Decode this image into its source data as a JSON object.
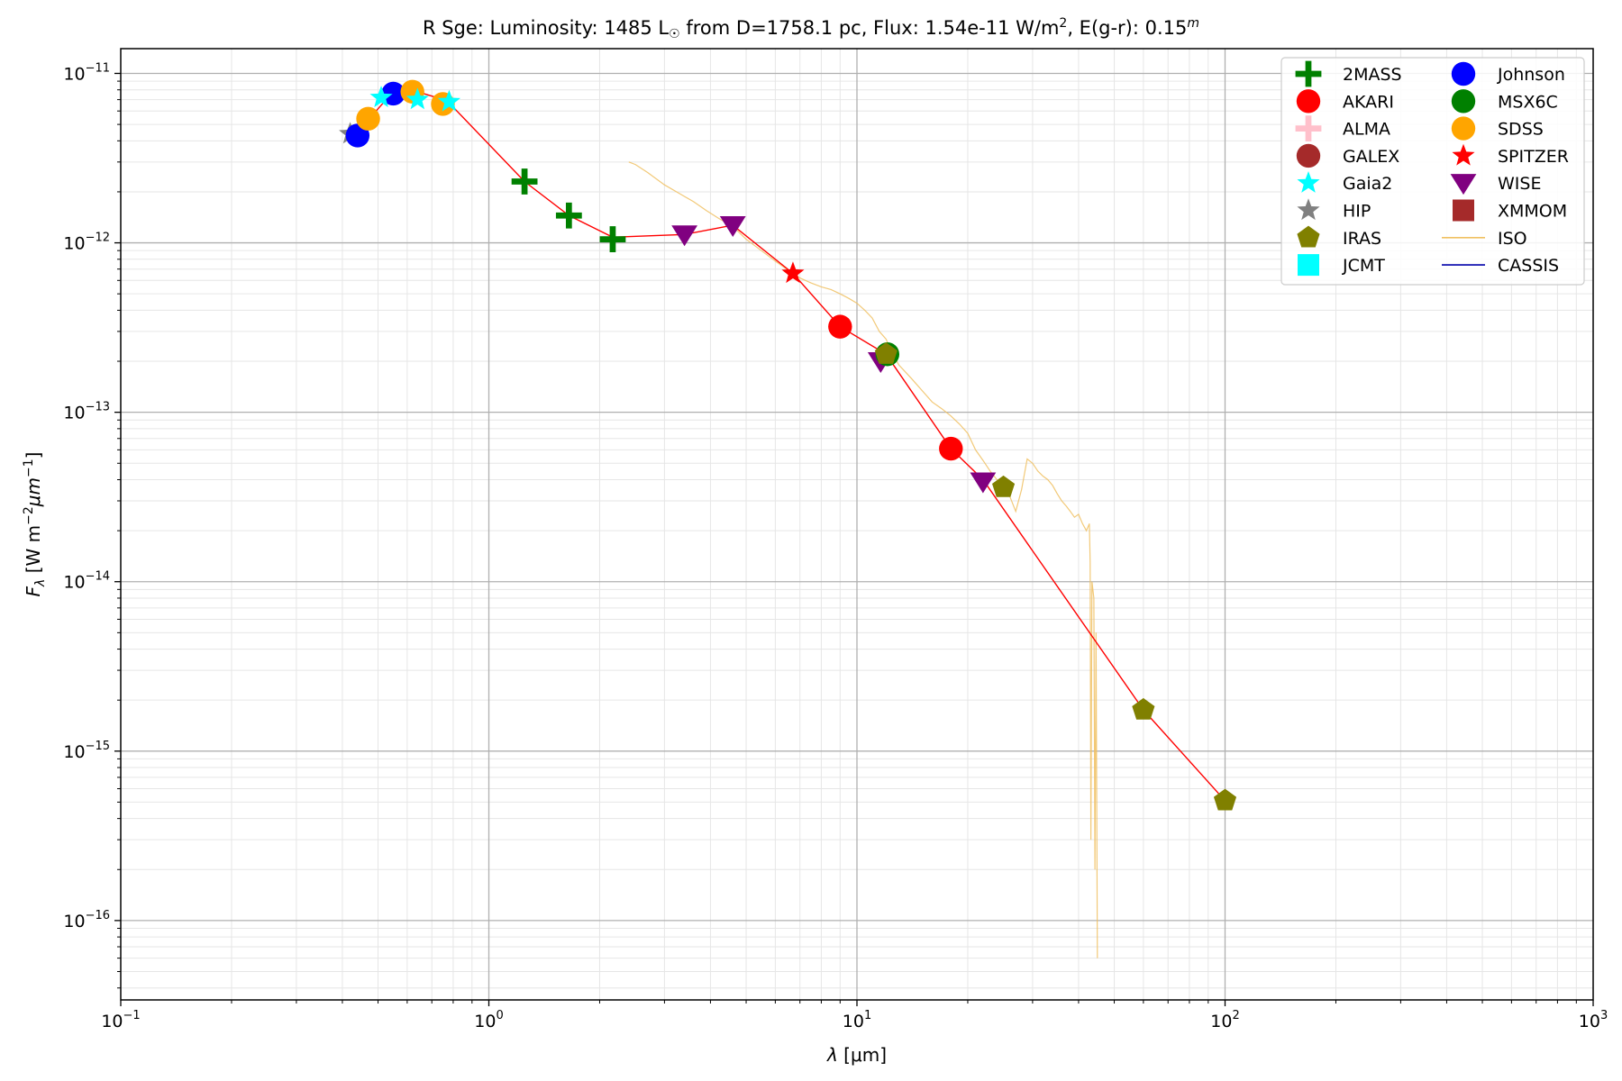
{
  "chart_data": {
    "type": "scatter",
    "title": {
      "prefix": "R Sge:  Luminosity: 1485 L",
      "sun_symbol": "☉",
      "middle": " from D=1758.1 pc, Flux: 1.54e-11 W/m",
      "exp2": "2",
      "suffix": ", E(g-r): 0.15",
      "exp_m": "m"
    },
    "xlabel": {
      "lambda": "λ",
      "unit": " [μm]"
    },
    "ylabel": {
      "F": "F",
      "sub": "λ",
      "pre": " [W m",
      "exp1": "−2",
      "mu": "μm",
      "exp2": "−1",
      "post": "]"
    },
    "xscale": "log",
    "yscale": "log",
    "xlim": [
      0.1,
      1000
    ],
    "ylim": [
      3.4e-17,
      1.4e-11
    ],
    "grid": true,
    "legend_placement": "top-right",
    "x_ticks": [
      {
        "base": "10",
        "exp": "−1",
        "value": 0.1
      },
      {
        "base": "10",
        "exp": "0",
        "value": 1
      },
      {
        "base": "10",
        "exp": "1",
        "value": 10
      },
      {
        "base": "10",
        "exp": "2",
        "value": 100
      },
      {
        "base": "10",
        "exp": "3",
        "value": 1000
      }
    ],
    "y_ticks": [
      {
        "base": "10",
        "exp": "−16",
        "value": 1e-16
      },
      {
        "base": "10",
        "exp": "−15",
        "value": 1e-15
      },
      {
        "base": "10",
        "exp": "−14",
        "value": 1e-14
      },
      {
        "base": "10",
        "exp": "−13",
        "value": 1e-13
      },
      {
        "base": "10",
        "exp": "−12",
        "value": 1e-12
      },
      {
        "base": "10",
        "exp": "−11",
        "value": 1e-11
      }
    ],
    "legend": [
      {
        "name": "2MASS",
        "marker": "plus",
        "color": "#008000"
      },
      {
        "name": "AKARI",
        "marker": "circle",
        "color": "#ff0000"
      },
      {
        "name": "ALMA",
        "marker": "plus",
        "color": "#ffc0cb"
      },
      {
        "name": "GALEX",
        "marker": "circle",
        "color": "#a52a2a"
      },
      {
        "name": "Gaia2",
        "marker": "star",
        "color": "#00ffff"
      },
      {
        "name": "HIP",
        "marker": "star",
        "color": "#808080"
      },
      {
        "name": "IRAS",
        "marker": "pentagon",
        "color": "#808000"
      },
      {
        "name": "JCMT",
        "marker": "square",
        "color": "#00ffff"
      },
      {
        "name": "Johnson",
        "marker": "circle",
        "color": "#0000ff"
      },
      {
        "name": "MSX6C",
        "marker": "circle",
        "color": "#008000"
      },
      {
        "name": "SDSS",
        "marker": "circle",
        "color": "#ffa500"
      },
      {
        "name": "SPITZER",
        "marker": "star",
        "color": "#ff0000"
      },
      {
        "name": "WISE",
        "marker": "triangle-down",
        "color": "#800080"
      },
      {
        "name": "XMMOM",
        "marker": "square",
        "color": "#a52a2a"
      },
      {
        "name": "ISO",
        "marker": "line",
        "color": "#f0c060"
      },
      {
        "name": "CASSIS",
        "marker": "line",
        "color": "#0000aa"
      }
    ],
    "model_line": {
      "color": "#ff0000",
      "points": [
        [
          0.435,
          4.4e-12
        ],
        [
          0.55,
          7.8e-12
        ],
        [
          0.64,
          7.8e-12
        ],
        [
          0.77,
          6.9e-12
        ],
        [
          1.25,
          2.3e-12
        ],
        [
          1.65,
          1.45e-12
        ],
        [
          2.17,
          1.08e-12
        ],
        [
          3.4,
          1.12e-12
        ],
        [
          4.6,
          1.27e-12
        ],
        [
          6.7,
          6.6e-13
        ],
        [
          9.0,
          3.2e-13
        ],
        [
          12.0,
          2.2e-13
        ],
        [
          18.0,
          6.1e-14
        ],
        [
          22.0,
          4e-14
        ],
        [
          60.0,
          1.75e-15
        ],
        [
          100.0,
          5.1e-16
        ]
      ]
    },
    "series": [
      {
        "name": "HIP",
        "points": [
          [
            0.42,
            4.4e-12
          ]
        ]
      },
      {
        "name": "Johnson",
        "points": [
          [
            0.44,
            4.3e-12
          ],
          [
            0.55,
            7.6e-12
          ]
        ]
      },
      {
        "name": "SDSS",
        "points": [
          [
            0.47,
            5.4e-12
          ],
          [
            0.62,
            7.8e-12
          ],
          [
            0.75,
            6.6e-12
          ]
        ]
      },
      {
        "name": "Gaia2",
        "points": [
          [
            0.51,
            7.2e-12
          ],
          [
            0.64,
            7e-12
          ],
          [
            0.78,
            6.8e-12
          ]
        ]
      },
      {
        "name": "2MASS",
        "points": [
          [
            1.25,
            2.3e-12
          ],
          [
            1.65,
            1.45e-12
          ],
          [
            2.17,
            1.05e-12
          ]
        ]
      },
      {
        "name": "WISE",
        "points": [
          [
            3.4,
            1.12e-12
          ],
          [
            4.6,
            1.27e-12
          ],
          [
            11.6,
            2e-13
          ],
          [
            22.0,
            3.9e-14
          ]
        ]
      },
      {
        "name": "SPITZER",
        "points": [
          [
            6.7,
            6.6e-13
          ]
        ]
      },
      {
        "name": "AKARI",
        "points": [
          [
            9.0,
            3.2e-13
          ],
          [
            18.0,
            6.1e-14
          ]
        ]
      },
      {
        "name": "MSX6C",
        "points": [
          [
            12.1,
            2.2e-13
          ]
        ]
      },
      {
        "name": "IRAS",
        "points": [
          [
            12.0,
            2.2e-13
          ],
          [
            25.0,
            3.6e-14
          ],
          [
            60.0,
            1.75e-15
          ],
          [
            100.0,
            5.1e-16
          ]
        ]
      }
    ],
    "iso_spectrum": {
      "points": [
        [
          2.4,
          3e-12
        ],
        [
          2.5,
          2.9e-12
        ],
        [
          2.7,
          2.6e-12
        ],
        [
          3.0,
          2.2e-12
        ],
        [
          3.3,
          1.95e-12
        ],
        [
          3.6,
          1.75e-12
        ],
        [
          3.9,
          1.55e-12
        ],
        [
          4.2,
          1.4e-12
        ],
        [
          4.6,
          1.25e-12
        ],
        [
          5.0,
          1.05e-12
        ],
        [
          5.5,
          9e-13
        ],
        [
          6.0,
          7.8e-13
        ],
        [
          6.5,
          6.9e-13
        ],
        [
          7.0,
          6.2e-13
        ],
        [
          7.5,
          5.8e-13
        ],
        [
          8.0,
          5.5e-13
        ],
        [
          8.5,
          5.3e-13
        ],
        [
          9.0,
          5e-13
        ],
        [
          9.5,
          4.7e-13
        ],
        [
          10.0,
          4.4e-13
        ],
        [
          10.5,
          4e-13
        ],
        [
          11.0,
          3.6e-13
        ],
        [
          11.5,
          3e-13
        ],
        [
          12.0,
          2.7e-13
        ],
        [
          12.5,
          2.2e-13
        ],
        [
          13.0,
          1.9e-13
        ],
        [
          14.0,
          1.6e-13
        ],
        [
          15.0,
          1.35e-13
        ],
        [
          16.0,
          1.15e-13
        ],
        [
          17.0,
          1.05e-13
        ],
        [
          18.0,
          9.5e-14
        ],
        [
          19.0,
          8.5e-14
        ],
        [
          20.0,
          7.5e-14
        ],
        [
          21.0,
          6e-14
        ],
        [
          22.0,
          5.2e-14
        ],
        [
          23.0,
          4.5e-14
        ],
        [
          24.0,
          4e-14
        ],
        [
          25.0,
          3.8e-14
        ],
        [
          26.0,
          3.2e-14
        ],
        [
          27.0,
          2.6e-14
        ],
        [
          28.0,
          3.5e-14
        ],
        [
          29.0,
          5.3e-14
        ],
        [
          30.0,
          5e-14
        ],
        [
          31.0,
          4.5e-14
        ],
        [
          32.0,
          4.2e-14
        ],
        [
          33.0,
          4e-14
        ],
        [
          34.0,
          3.7e-14
        ],
        [
          35.0,
          3.3e-14
        ],
        [
          36.0,
          3e-14
        ],
        [
          37.0,
          2.8e-14
        ],
        [
          38.0,
          2.6e-14
        ],
        [
          39.0,
          2.4e-14
        ],
        [
          40.0,
          2.5e-14
        ],
        [
          41.0,
          2.2e-14
        ],
        [
          42.0,
          2e-14
        ],
        [
          42.8,
          2.2e-14
        ],
        [
          43.0,
          1.3e-14
        ],
        [
          43.2,
          3e-16
        ],
        [
          43.5,
          1e-14
        ],
        [
          44.0,
          8e-15
        ],
        [
          44.3,
          2e-16
        ],
        [
          44.6,
          5e-15
        ],
        [
          45.0,
          6e-17
        ]
      ]
    }
  }
}
